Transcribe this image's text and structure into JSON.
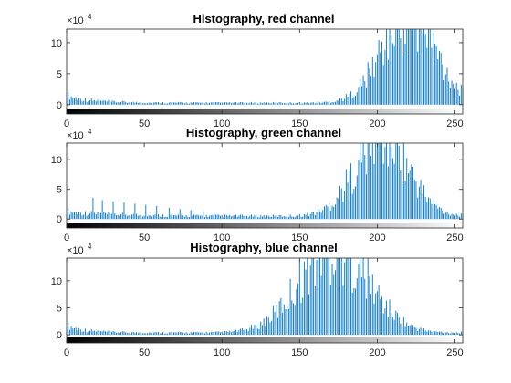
{
  "chart_data": [
    {
      "type": "bar",
      "title": "Histography, red channel",
      "xlabel": "",
      "ylabel": "",
      "xlim": [
        0,
        255
      ],
      "ylim": [
        -1.5,
        12.2
      ],
      "y_multiplier_label": "×10",
      "y_multiplier_exp": "4",
      "x_ticks": [
        0,
        50,
        100,
        150,
        200,
        250
      ],
      "y_ticks": [
        0,
        5,
        10
      ],
      "x_tick_labels": [
        "0",
        "50",
        "100",
        "150",
        "200",
        "250"
      ],
      "y_tick_labels": [
        "0",
        "5",
        "10"
      ],
      "colorbar": "grayscale 0 to 255",
      "bar_color": "#0072BD",
      "grid": false,
      "profile": {
        "center": 220,
        "width": 17,
        "height": 14.5,
        "base": 0.3,
        "tail_low": 1.2,
        "tail_decay": 15,
        "spikes": []
      }
    },
    {
      "type": "bar",
      "title": "Histography, green channel",
      "xlabel": "",
      "ylabel": "",
      "xlim": [
        0,
        255
      ],
      "ylim": [
        -1.5,
        12.8
      ],
      "y_multiplier_label": "×10",
      "y_multiplier_exp": "4",
      "x_ticks": [
        0,
        50,
        100,
        150,
        200,
        250
      ],
      "y_ticks": [
        0,
        5,
        10
      ],
      "x_tick_labels": [
        "0",
        "50",
        "100",
        "150",
        "200",
        "250"
      ],
      "y_tick_labels": [
        "0",
        "5",
        "10"
      ],
      "colorbar": "grayscale 0 to 255",
      "bar_color": "#0072BD",
      "grid": false,
      "profile": {
        "center": 203,
        "width": 17,
        "height": 13.5,
        "base": 0.5,
        "tail_low": 0.8,
        "tail_decay": 30,
        "spikes": [
          [
            17,
            3.6
          ],
          [
            23,
            3.2
          ],
          [
            30,
            3.0
          ],
          [
            37,
            2.8
          ],
          [
            44,
            2.6
          ],
          [
            51,
            2.4
          ],
          [
            58,
            2.2
          ],
          [
            66,
            1.9
          ],
          [
            73,
            1.7
          ],
          [
            80,
            1.5
          ],
          [
            88,
            1.3
          ],
          [
            95,
            1.1
          ]
        ]
      }
    },
    {
      "type": "bar",
      "title": "Histography, blue channel",
      "xlabel": "",
      "ylabel": "",
      "xlim": [
        0,
        255
      ],
      "ylim": [
        -1.5,
        14.2
      ],
      "y_multiplier_label": "×10",
      "y_multiplier_exp": "4",
      "x_ticks": [
        0,
        50,
        100,
        150,
        200,
        250
      ],
      "y_ticks": [
        0,
        5,
        10
      ],
      "x_tick_labels": [
        "0",
        "50",
        "100",
        "150",
        "200",
        "250"
      ],
      "y_tick_labels": [
        "0",
        "5",
        "10"
      ],
      "colorbar": "grayscale 0 to 255",
      "bar_color": "#0072BD",
      "grid": false,
      "profile": {
        "center": 172,
        "width": 22,
        "height": 16,
        "base": 0.4,
        "tail_low": 1.3,
        "tail_decay": 12,
        "spikes": []
      }
    }
  ]
}
